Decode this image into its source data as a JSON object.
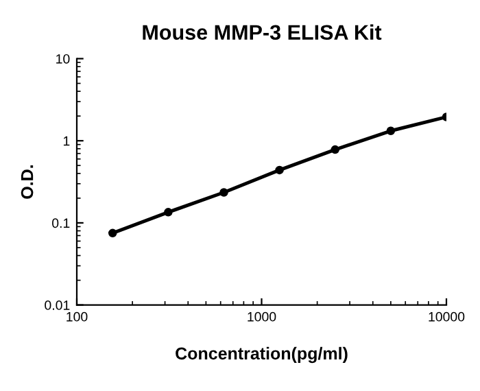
{
  "chart_data": {
    "type": "line",
    "title": "Mouse MMP-3 ELISA Kit",
    "xlabel": "Concentration(pg/ml)",
    "ylabel": "O.D.",
    "log": "xy",
    "x": [
      156.25,
      312.5,
      625,
      1250,
      2500,
      5000,
      10000
    ],
    "series": [
      {
        "color": "#000000",
        "values": [
          0.075,
          0.135,
          0.235,
          0.44,
          0.78,
          1.32,
          1.95
        ]
      }
    ],
    "xlim": [
      100,
      10000
    ],
    "ylim": [
      0.01,
      10
    ],
    "xticks": [
      100,
      1000,
      10000
    ],
    "yticks": [
      0.01,
      0.1,
      1,
      10
    ],
    "marker": "circle",
    "line_style": "solid",
    "grid": false
  }
}
